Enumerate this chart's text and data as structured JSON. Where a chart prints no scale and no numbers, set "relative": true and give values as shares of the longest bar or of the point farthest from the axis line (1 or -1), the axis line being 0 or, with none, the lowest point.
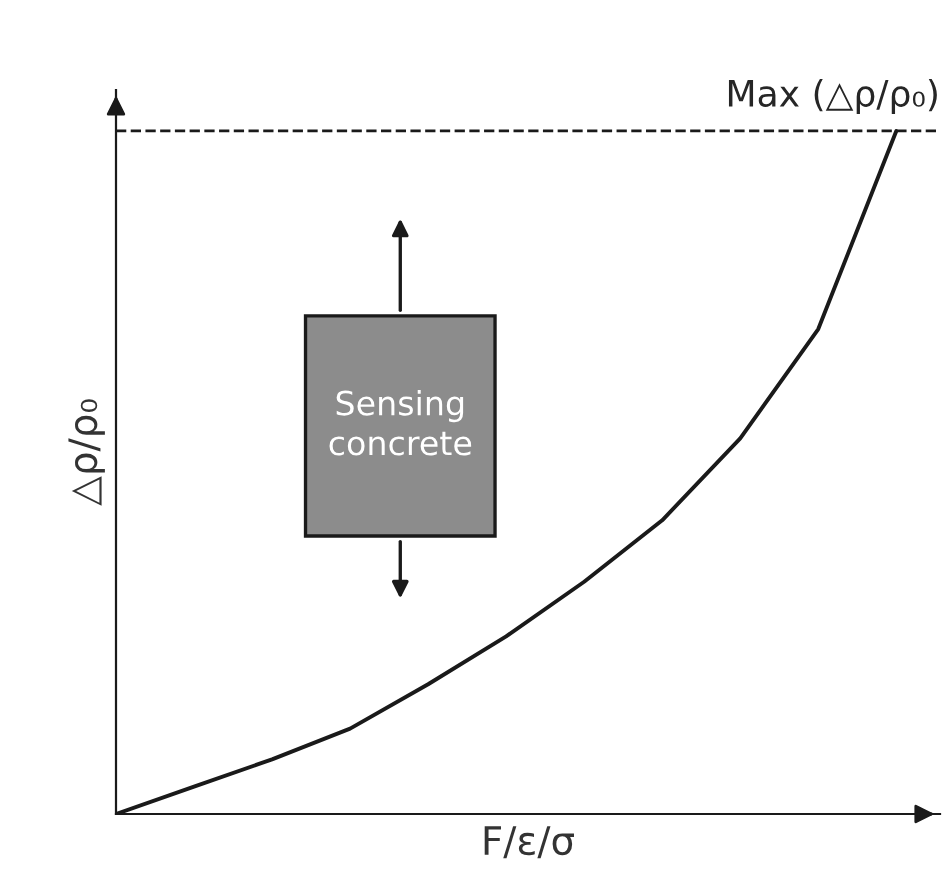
{
  "chart_data": {
    "type": "line",
    "relative": true,
    "xlabel": "F/ε/σ",
    "ylabel": "△ρ/ρ₀",
    "categories": [
      null,
      null,
      null,
      null,
      null,
      null,
      null,
      null,
      null,
      null,
      null
    ],
    "series": [
      {
        "color": "#1a1a1a",
        "values": [
          0,
          0.04,
          0.08,
          0.125,
          0.19,
          0.26,
          0.34,
          0.43,
          0.55,
          0.71,
          1.0
        ]
      }
    ],
    "ref_lines": [
      {
        "axis": "y",
        "value": 1.0,
        "label": "Max (△ρ/ρ₀)",
        "color": "#1a1a1a",
        "line_style": "dashed"
      }
    ],
    "annotations": [
      "Sensing concrete"
    ],
    "legend": false,
    "marker": "none",
    "line_style": "solid"
  }
}
